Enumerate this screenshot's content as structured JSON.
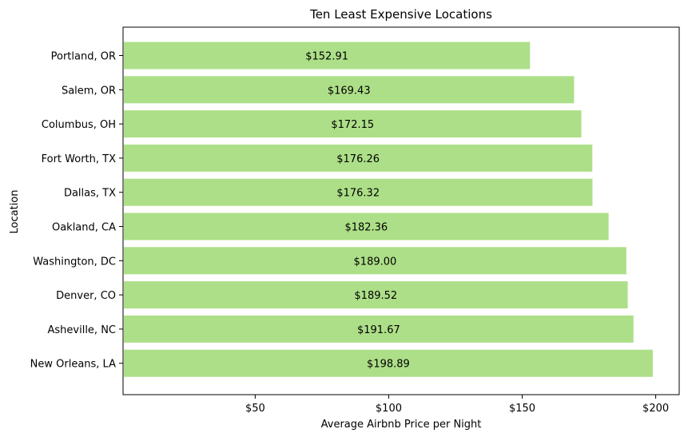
{
  "chart_data": {
    "type": "bar",
    "orientation": "horizontal",
    "title": "Ten Least Expensive Locations",
    "xlabel": "Average Airbnb Price per Night",
    "ylabel": "Location",
    "categories": [
      "Portland, OR",
      "Salem, OR",
      "Columbus, OH",
      "Fort Worth, TX",
      "Dallas, TX",
      "Oakland, CA",
      "Washington, DC",
      "Denver, CO",
      "Asheville, NC",
      "New Orleans, LA"
    ],
    "values": [
      152.91,
      169.43,
      172.15,
      176.26,
      176.32,
      182.36,
      189.0,
      189.52,
      191.67,
      198.89
    ],
    "data_labels": [
      "$152.91",
      "$169.43",
      "$172.15",
      "$176.26",
      "$176.32",
      "$182.36",
      "$189.00",
      "$189.52",
      "$191.67",
      "$198.89"
    ],
    "xticks": [
      50,
      100,
      150,
      200
    ],
    "xtick_labels": [
      "$50",
      "$100",
      "$150",
      "$200"
    ],
    "xlim": [
      0.5,
      208.8
    ],
    "bar_color": "#addf88",
    "grid": false,
    "legend": "none"
  }
}
